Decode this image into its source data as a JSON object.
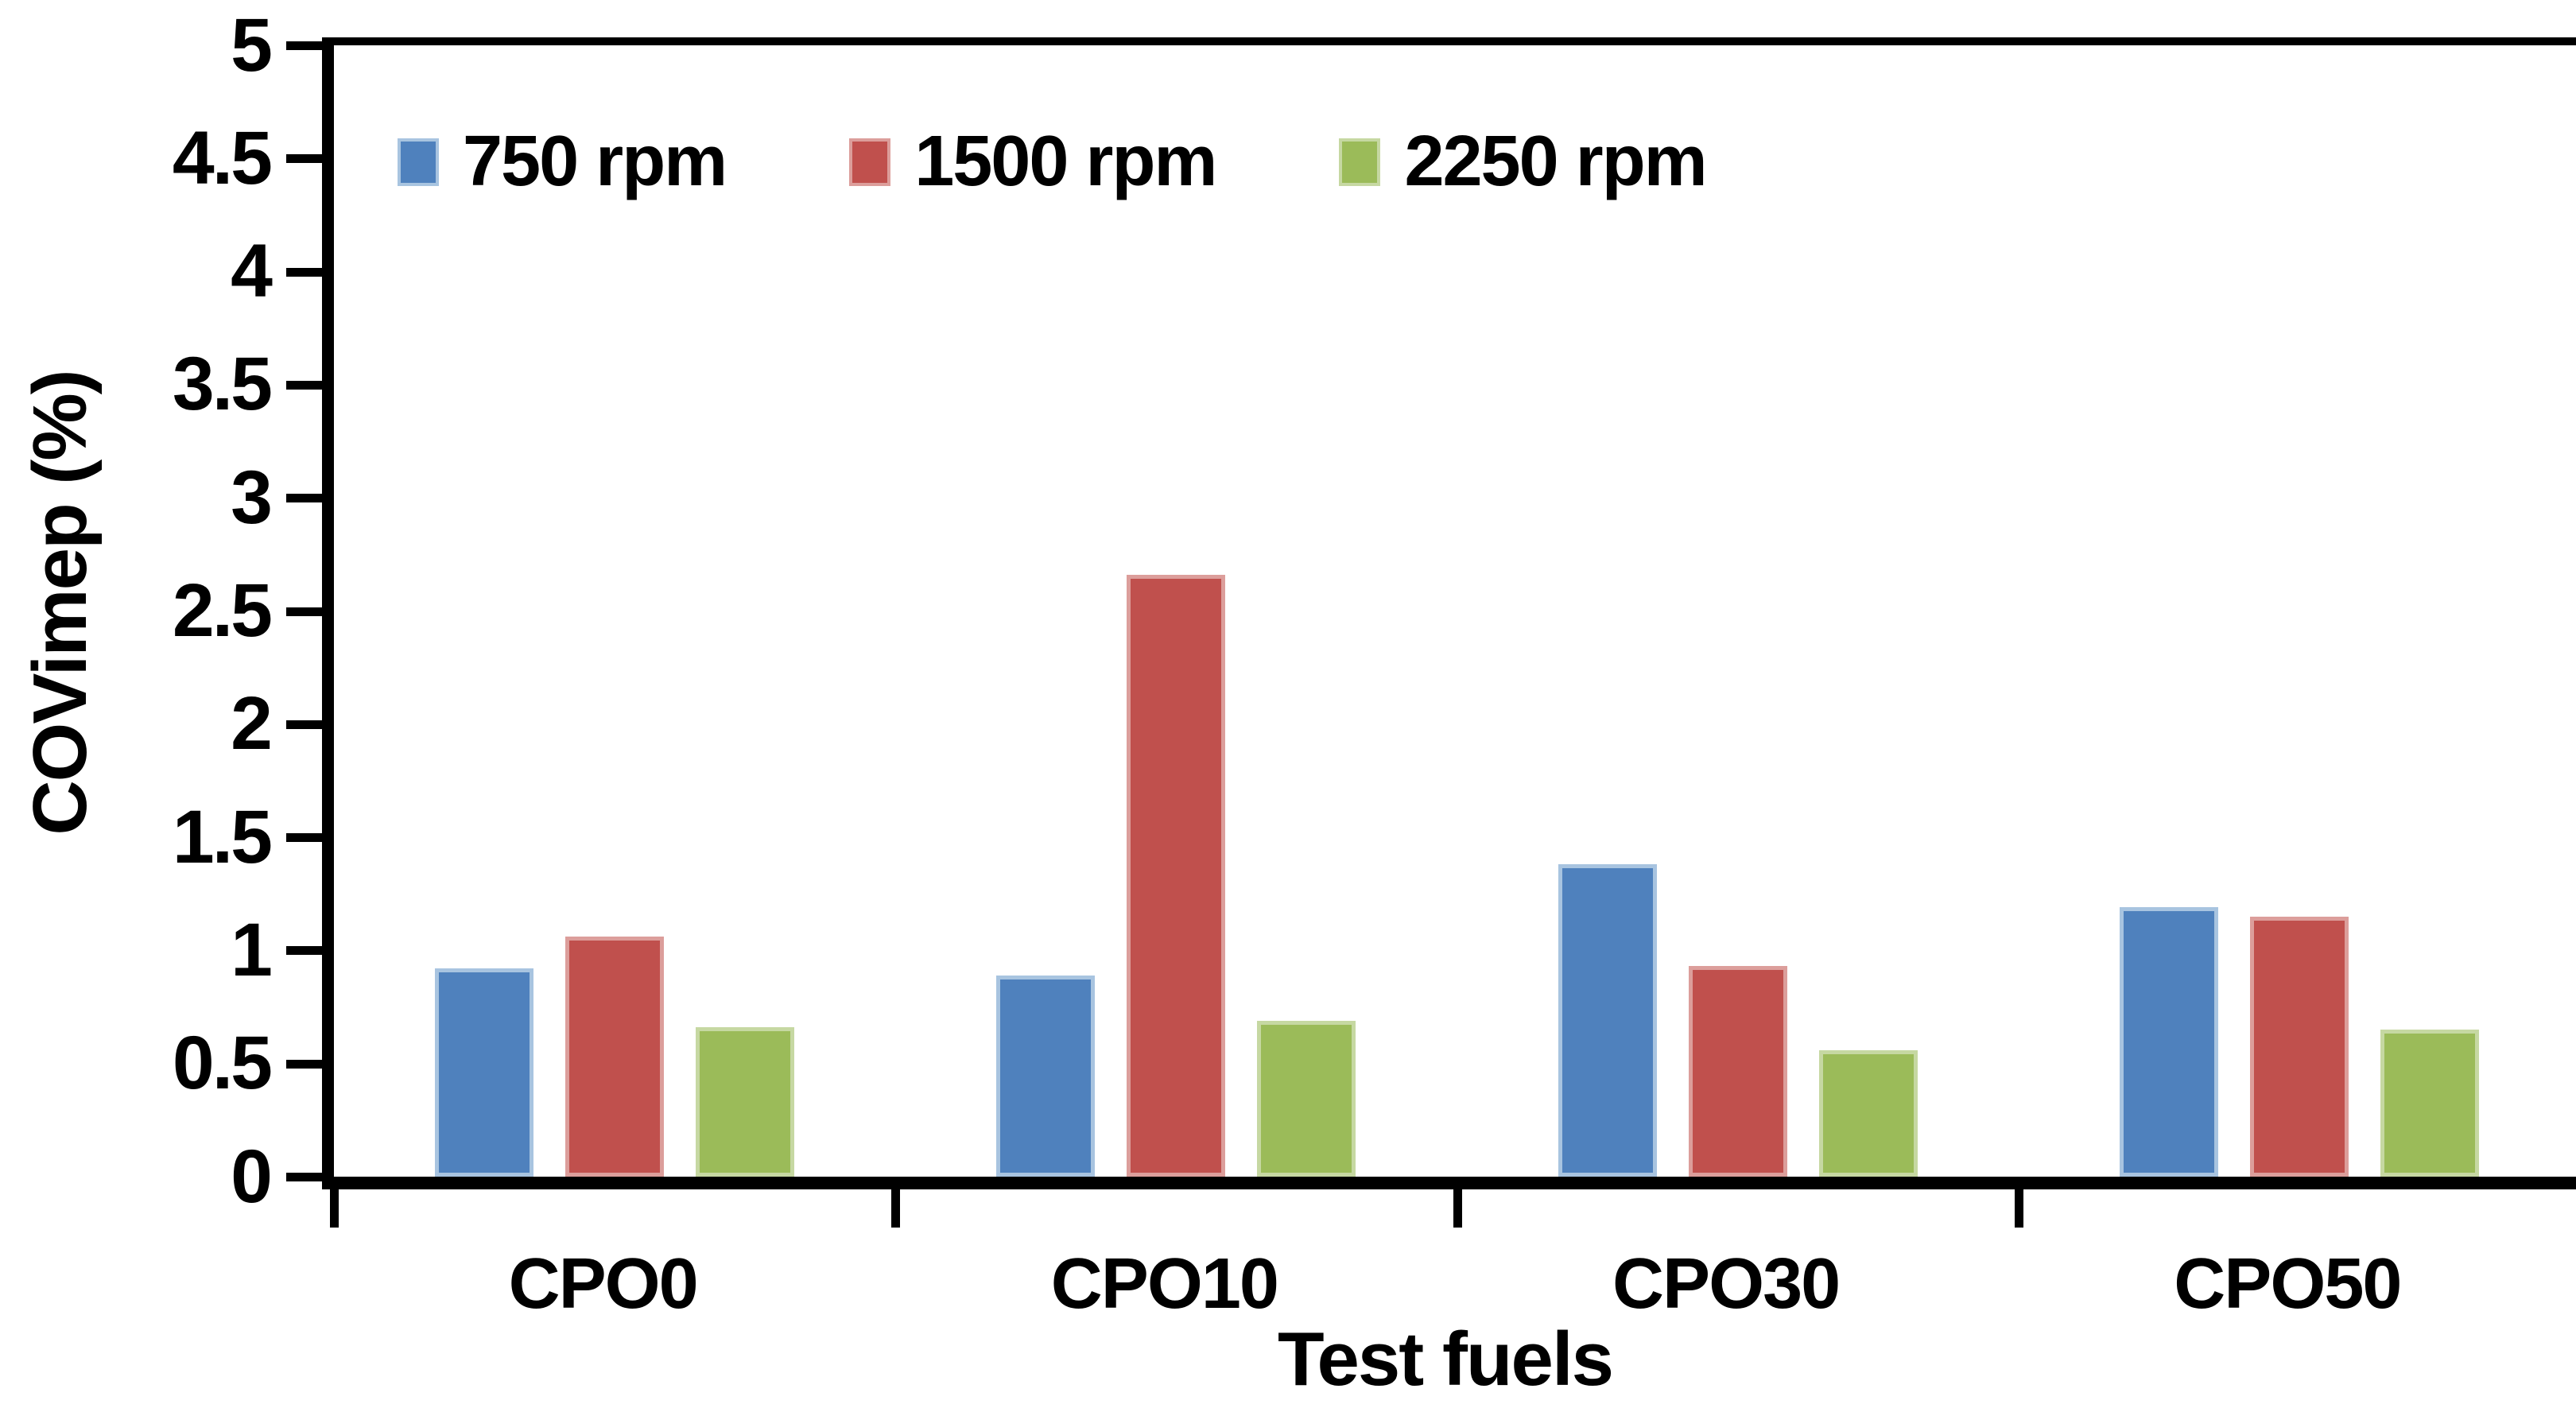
{
  "figure": {
    "background": "#ffffff",
    "text_color": "#000000"
  },
  "chart_data": {
    "type": "bar",
    "title": "",
    "xlabel": "Test fuels",
    "ylabel": "COVimep (%)",
    "categories": [
      "CPO0",
      "CPO10",
      "CPO30",
      "CPO50"
    ],
    "series": [
      {
        "name": "750 rpm",
        "color": "#4f81bd",
        "highlight": "#a8c4e0",
        "values": [
          0.92,
          0.89,
          1.38,
          1.19
        ]
      },
      {
        "name": "1500 rpm",
        "color": "#c0504d",
        "highlight": "#dc9e9b",
        "values": [
          1.06,
          2.66,
          0.93,
          1.15
        ]
      },
      {
        "name": "2250 rpm",
        "color": "#9bbb59",
        "highlight": "#c6d8a2",
        "values": [
          0.66,
          0.69,
          0.56,
          0.65
        ]
      }
    ],
    "ylim": [
      0,
      5
    ],
    "yticks": [
      0,
      0.5,
      1,
      1.5,
      2,
      2.5,
      3,
      3.5,
      4,
      4.5,
      5
    ],
    "grid": false,
    "legend_position": "top-left-inside",
    "axis_color": "#000000"
  }
}
